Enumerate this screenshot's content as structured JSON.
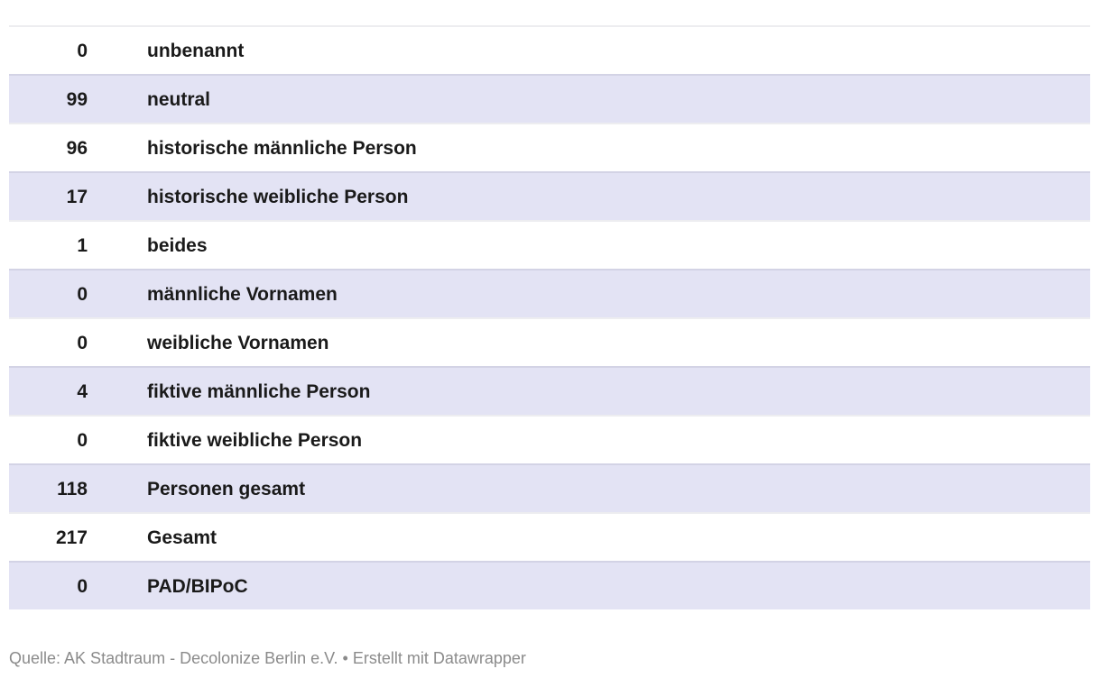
{
  "chart_data": {
    "type": "table",
    "rows": [
      [
        "0",
        "unbenannt"
      ],
      [
        "99",
        "neutral"
      ],
      [
        "96",
        "historische männliche Person"
      ],
      [
        "17",
        "historische weibliche Person"
      ],
      [
        "1",
        "beides"
      ],
      [
        "0",
        "männliche Vornamen"
      ],
      [
        "0",
        "weibliche Vornamen"
      ],
      [
        "4",
        "fiktive männliche Person"
      ],
      [
        "0",
        "fiktive weibliche Person"
      ],
      [
        "118",
        "Personen gesamt"
      ],
      [
        "217",
        "Gesamt"
      ],
      [
        "0",
        "PAD/BIPoC"
      ]
    ],
    "title": "",
    "legend_position": "none",
    "grid": "row-borders"
  },
  "footer": {
    "source_label": "Quelle: ",
    "source": "AK Stadtraum - Decolonize Berlin e.V.",
    "separator": " • ",
    "credit": "Erstellt mit ",
    "tool": "Datawrapper"
  },
  "colors": {
    "row_alt_background": "#e3e3f4",
    "row_border": "rgba(30,30,70,0.08)",
    "text": "#1a1a1a",
    "footer_text": "#8b8b8b"
  }
}
